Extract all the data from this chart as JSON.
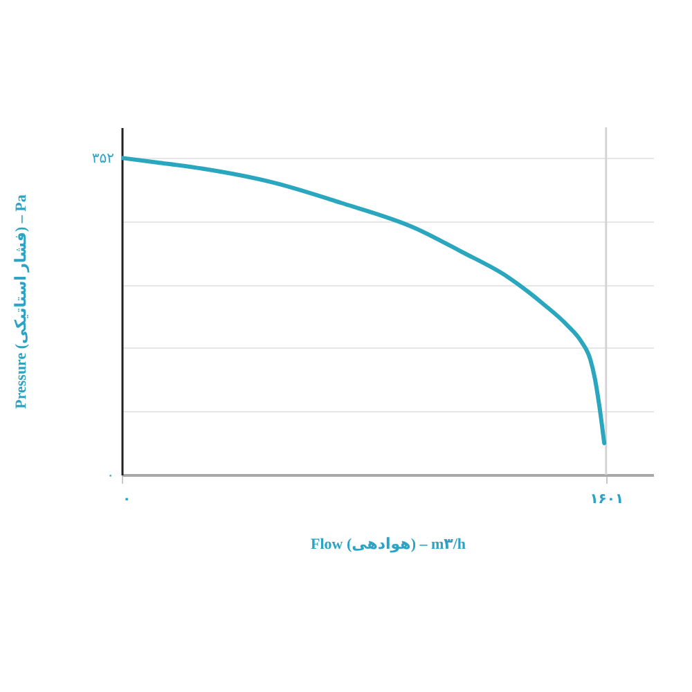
{
  "chart_data": {
    "type": "line",
    "xlabel": "Flow (هوادهی) – m۳/h",
    "ylabel": "Pressure (فشار استاتیکی) – Pa",
    "x": [
      0,
      116,
      268,
      497,
      726,
      970,
      1122,
      1275,
      1396,
      1473,
      1519,
      1549,
      1564,
      1579,
      1595
    ],
    "series": [
      {
        "color": "#2ba6bf",
        "values": [
          352,
          347,
          340,
          325,
          302,
          274,
          248,
          220,
          189,
          166,
          148,
          128,
          107,
          76,
          35
        ]
      }
    ],
    "xlim": [
      0,
      1757
    ],
    "ylim": [
      0,
      386
    ],
    "xticks": [
      {
        "value": 0,
        "label": "۰"
      },
      {
        "value": 1601,
        "label": "۱۶۰۱"
      }
    ],
    "yticks": [
      {
        "value": 0,
        "label": "۰"
      },
      {
        "value": 70.4,
        "label": null
      },
      {
        "value": 140.8,
        "label": null
      },
      {
        "value": 211.2,
        "label": null
      },
      {
        "value": 281.6,
        "label": null
      },
      {
        "value": 352,
        "label": "۳۵۲"
      }
    ],
    "ref_lines": [
      {
        "axis": "x",
        "value": 1601,
        "color": "#d4d4d4"
      }
    ],
    "grid": "y"
  }
}
